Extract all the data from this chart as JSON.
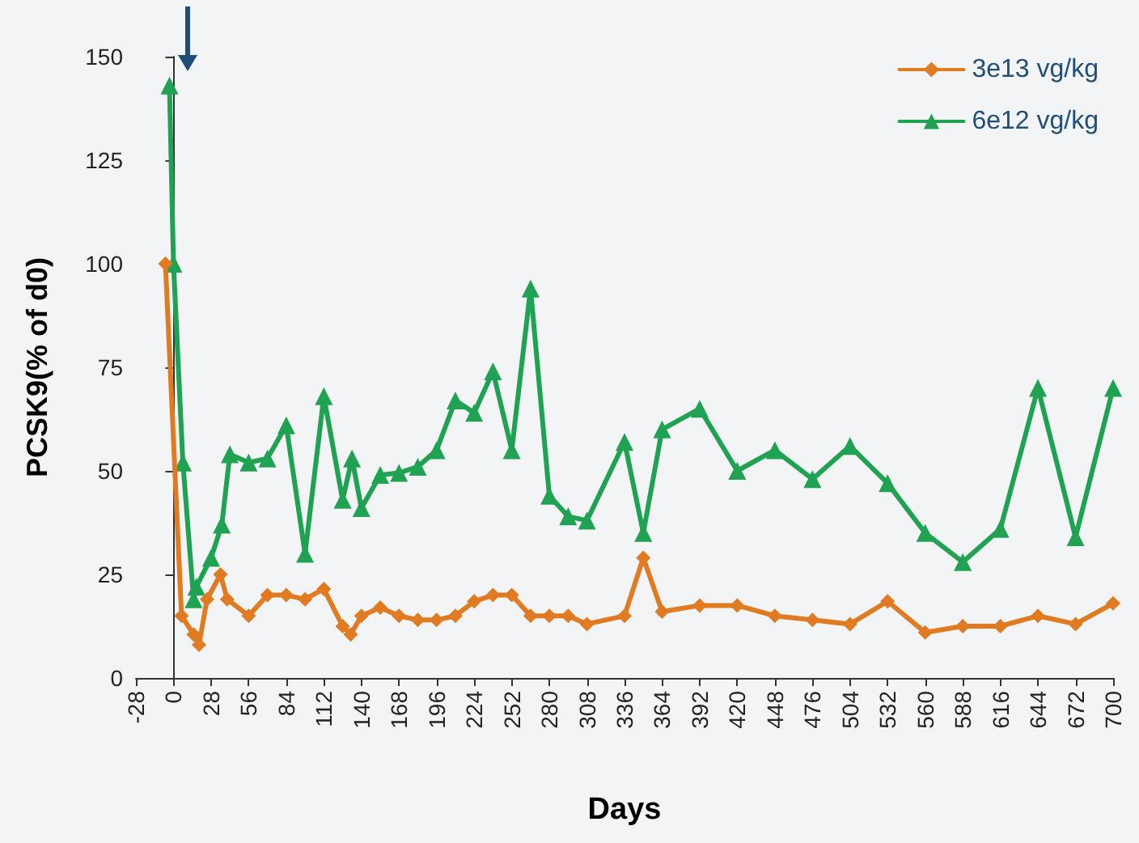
{
  "chart_data": {
    "type": "line",
    "xlabel": "Days",
    "ylabel": "PCSK9(% of d0)",
    "xlim": [
      -28,
      700
    ],
    "xticks": [
      -28,
      0,
      28,
      56,
      84,
      112,
      140,
      168,
      196,
      224,
      252,
      280,
      308,
      336,
      364,
      392,
      420,
      448,
      476,
      504,
      532,
      560,
      588,
      616,
      644,
      672,
      700
    ],
    "ylim": [
      0,
      150
    ],
    "yticks": [
      0,
      25,
      50,
      75,
      100,
      125,
      150
    ],
    "grid": false,
    "legend": "top right",
    "line_style": "solid",
    "series": [
      {
        "name": "3e13 vg/kg",
        "color": "#e07b22",
        "marker": "diamond",
        "x": [
          -6,
          6,
          15,
          19,
          25,
          35,
          40,
          56,
          70,
          84,
          98,
          112,
          126,
          132,
          140,
          154,
          168,
          182,
          196,
          210,
          224,
          238,
          252,
          266,
          280,
          294,
          308,
          336,
          350,
          364,
          392,
          420,
          448,
          476,
          504,
          532,
          560,
          588,
          616,
          644,
          672,
          700
        ],
        "values": [
          100,
          15,
          10.5,
          8,
          19,
          25,
          19,
          15,
          20,
          20,
          19,
          21.5,
          12.5,
          10.5,
          15,
          17,
          15,
          14,
          14,
          15,
          18.5,
          20,
          20,
          15,
          15,
          15,
          13,
          15,
          29,
          16,
          17.5,
          17.5,
          15,
          14,
          13,
          18.5,
          11,
          12.5,
          12.5,
          15,
          13,
          18
        ]
      },
      {
        "name": "6e12 vg/kg",
        "color": "#1fa352",
        "marker": "triangle",
        "x": [
          -3,
          0,
          7,
          15,
          17,
          28,
          36,
          42,
          56,
          70,
          84,
          98,
          112,
          126,
          133,
          140,
          154,
          168,
          182,
          196,
          210,
          224,
          238,
          252,
          266,
          280,
          294,
          308,
          336,
          350,
          364,
          392,
          420,
          448,
          476,
          504,
          532,
          560,
          588,
          616,
          644,
          672,
          700
        ],
        "values": [
          143,
          100,
          52,
          19,
          22,
          29,
          37,
          54,
          52,
          53,
          61,
          30,
          68,
          43,
          53,
          41,
          49,
          49.5,
          51,
          55,
          67,
          64,
          74,
          55,
          94,
          44,
          39,
          38,
          57,
          35,
          60,
          65,
          50,
          55,
          48,
          56,
          47,
          35,
          28,
          36,
          70,
          34,
          70
        ]
      }
    ]
  }
}
